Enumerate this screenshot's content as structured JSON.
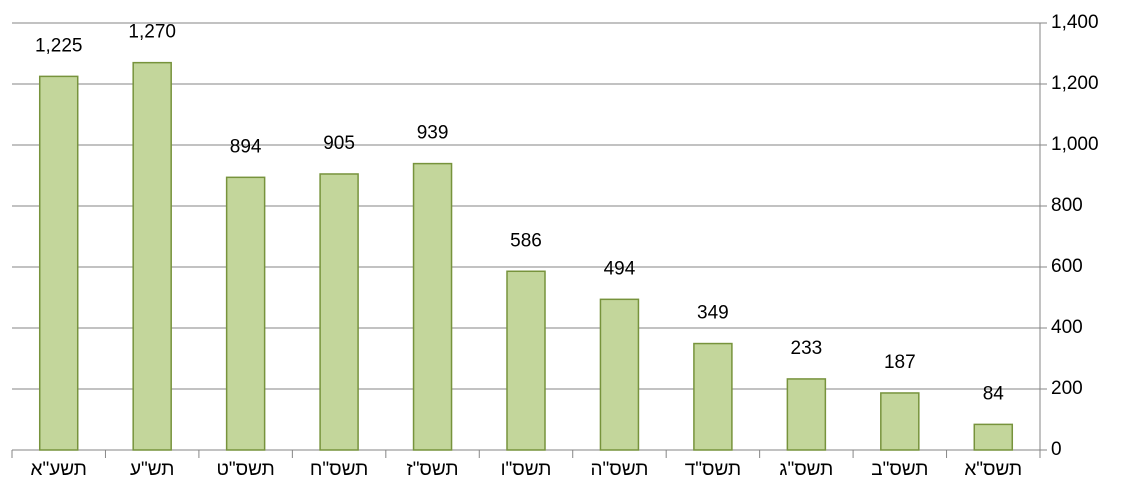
{
  "chart_data": {
    "type": "bar",
    "categories": [
      "תשע\"א",
      "תש\"ע",
      "תשס\"ט",
      "תשס\"ח",
      "תשס\"ז",
      "תשס\"ו",
      "תשס\"ה",
      "תשס\"ד",
      "תשס\"ג",
      "תשס\"ב",
      "תשס\"א"
    ],
    "values": [
      1225,
      1270,
      894,
      905,
      939,
      586,
      494,
      349,
      233,
      187,
      84
    ],
    "value_labels": [
      "1,225",
      "1,270",
      "894",
      "905",
      "939",
      "586",
      "494",
      "349",
      "233",
      "187",
      "84"
    ],
    "color": "#c3d69b",
    "ylim": [
      0,
      1400
    ],
    "yticks": [
      0,
      200,
      400,
      600,
      800,
      {
        "value": 1000,
        "label": "1,000"
      },
      {
        "value": 1200,
        "label": "1,200"
      },
      {
        "value": 1400,
        "label": "1,400"
      }
    ],
    "grid": true
  }
}
